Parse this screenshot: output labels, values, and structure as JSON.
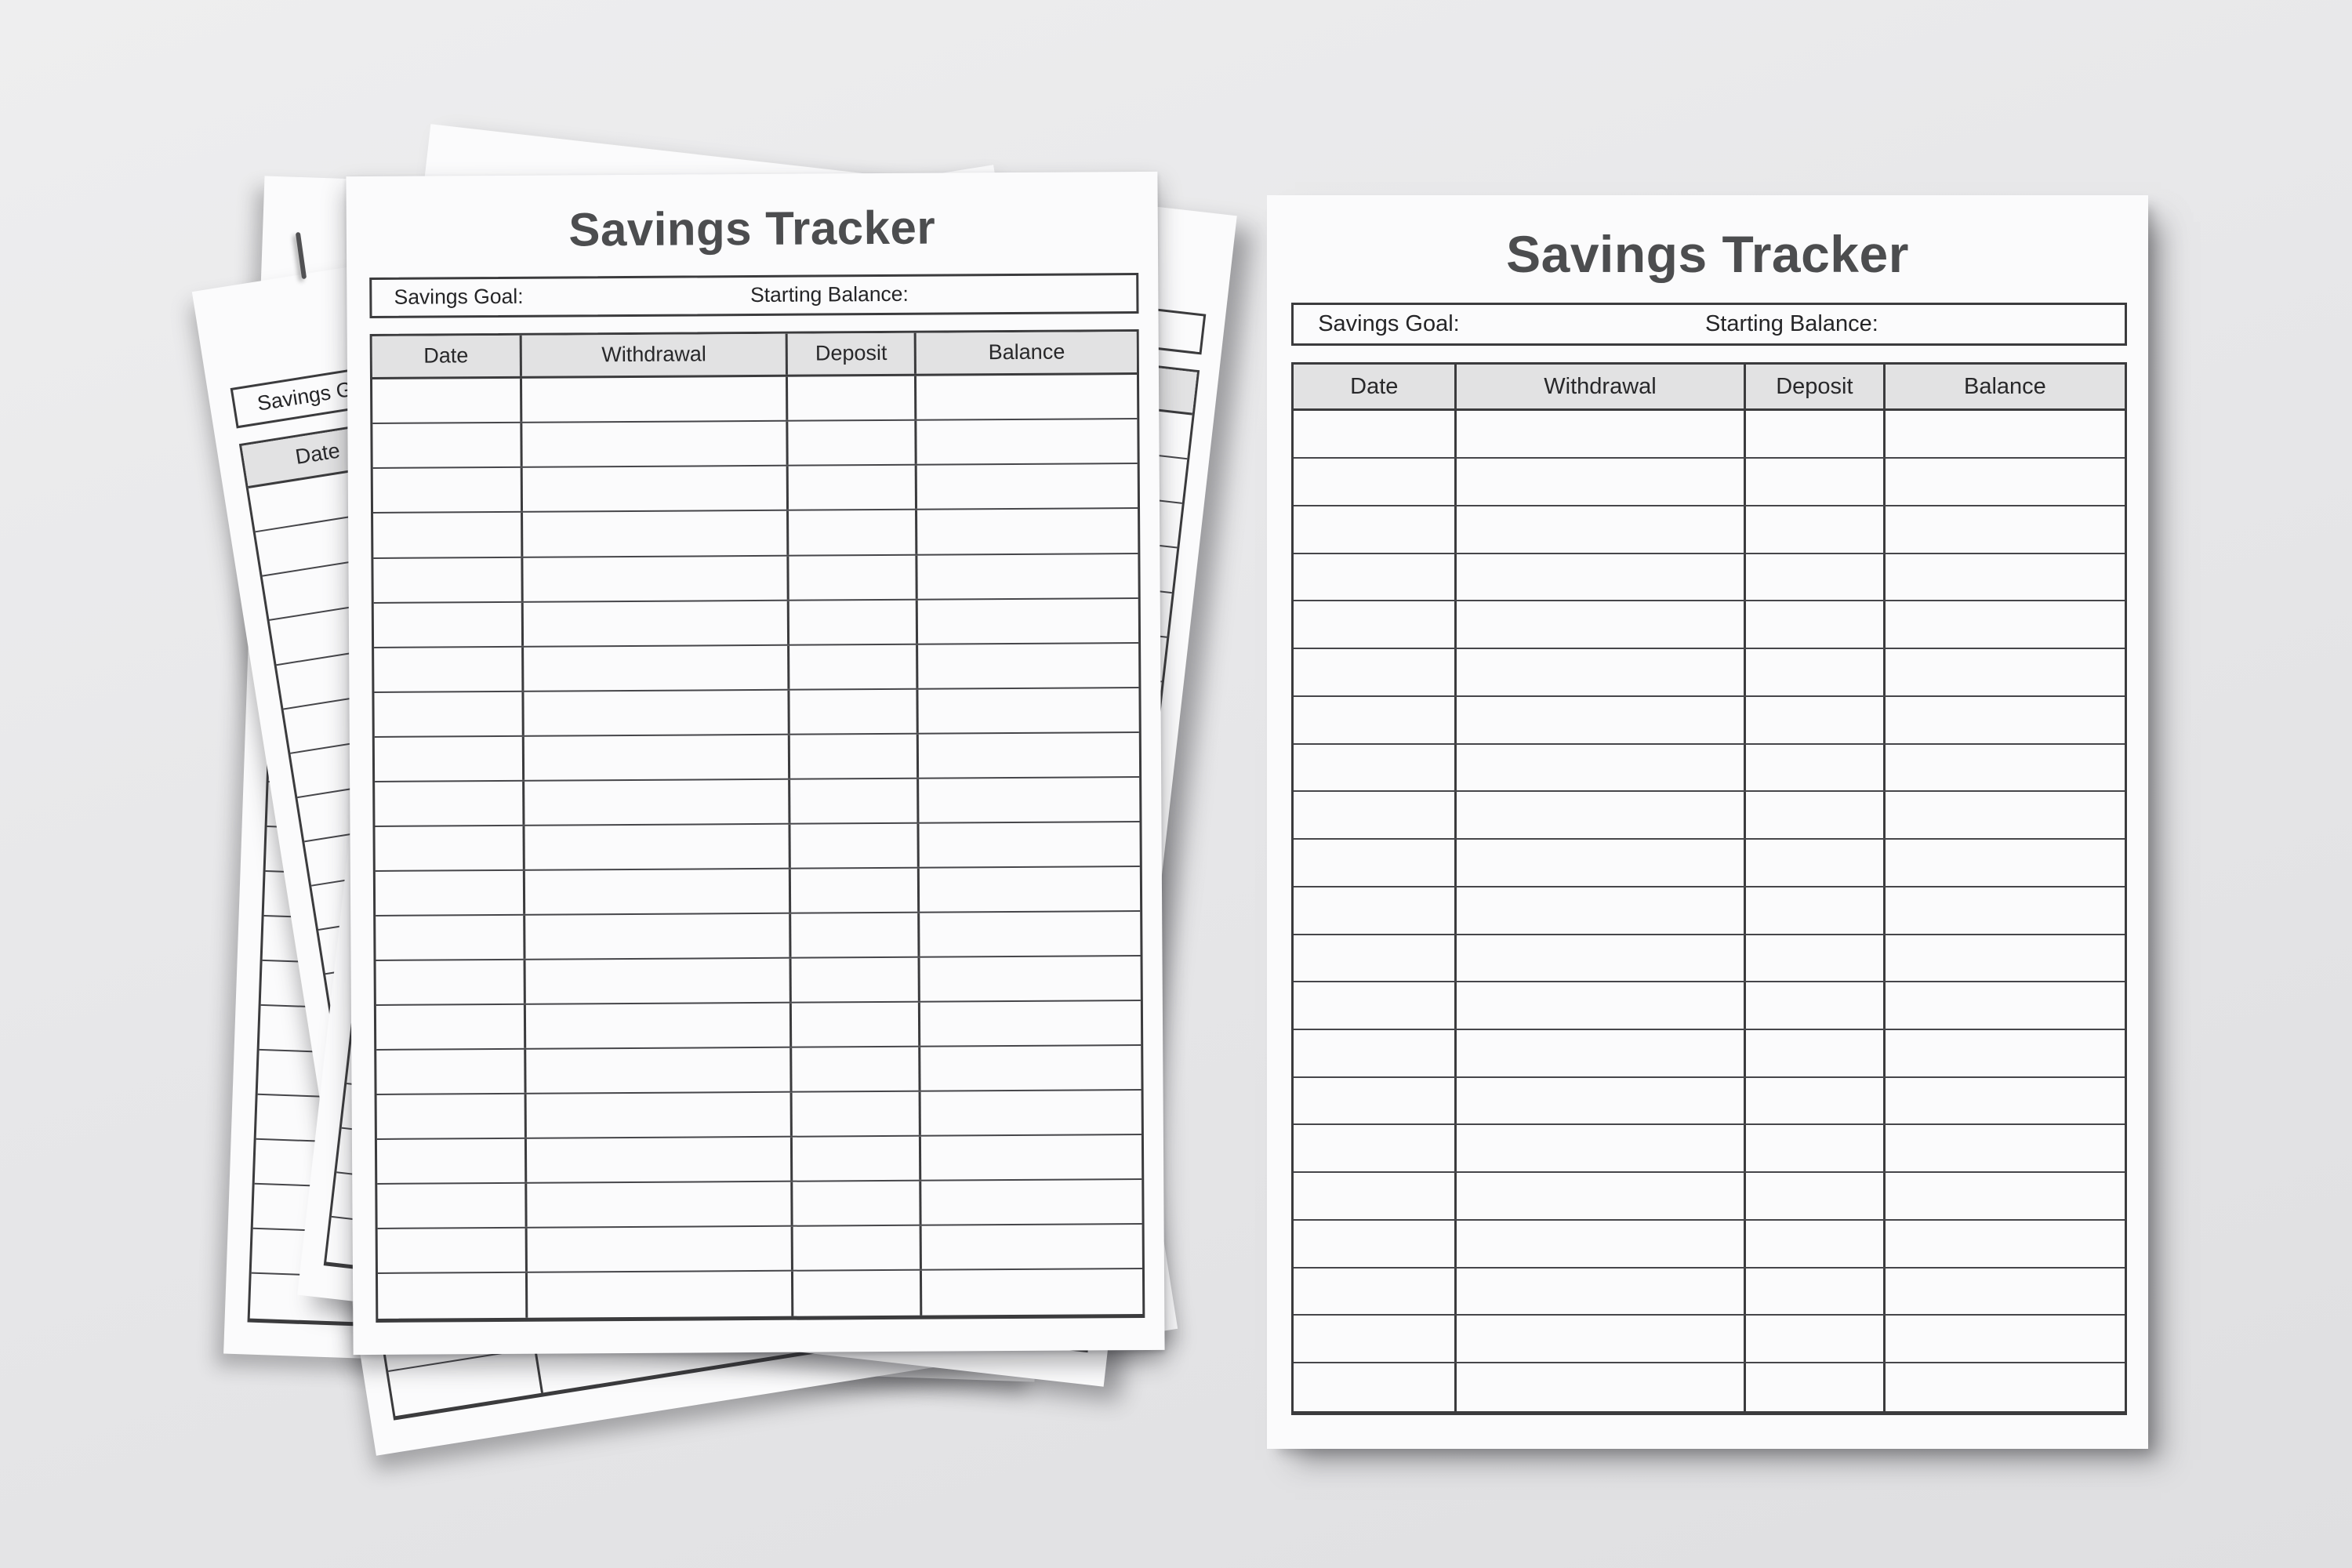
{
  "sheet": {
    "title": "Savings Tracker",
    "goal_label": "Savings Goal:",
    "starting_balance_label": "Starting Balance:",
    "columns": [
      "Date",
      "Withdrawal",
      "Deposit",
      "Balance"
    ],
    "body_row_count": 21
  },
  "left_stack": {
    "visible_sheet_count": 4
  },
  "right_page": {
    "visible_sheet_count": 1
  },
  "colors": {
    "background": "#e7e7e9",
    "paper": "#fbfbfc",
    "table_border": "#3b3b3d",
    "header_fill": "#e2e2e3",
    "title_text": "#4c4d4f",
    "label_text": "#252527"
  }
}
